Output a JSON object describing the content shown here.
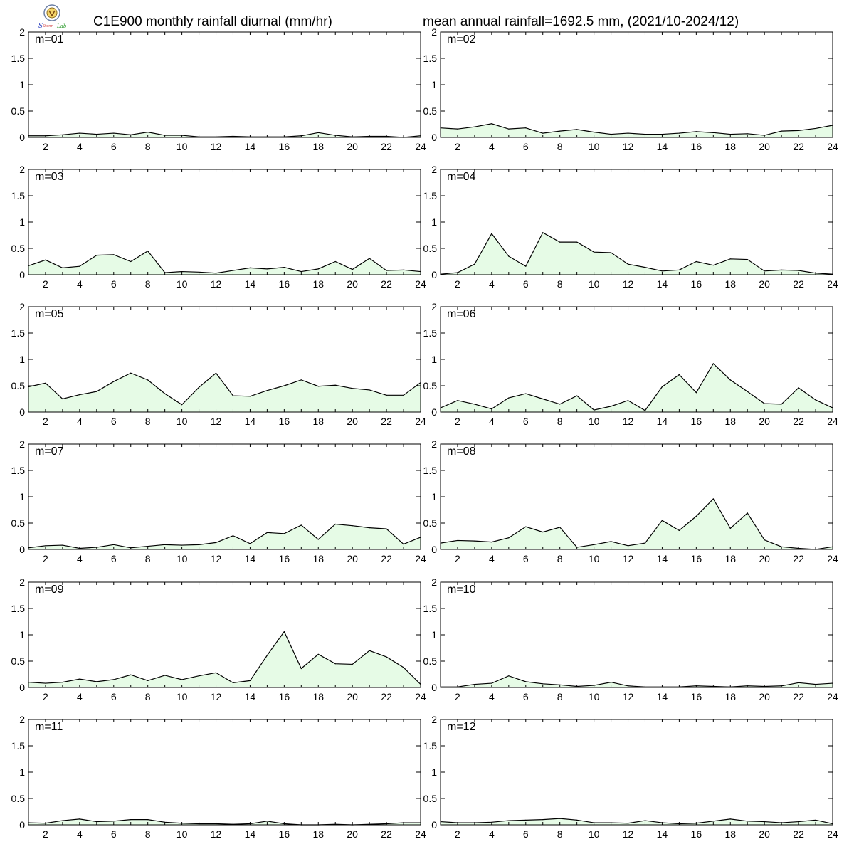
{
  "header": {
    "title_left": "C1E900 monthly rainfall diurnal (mm/hr)",
    "title_right": "mean annual rainfall=1692.5 mm, (2021/10-2024/12)"
  },
  "colors": {
    "fill": "#e6fbe6",
    "line": "#000000",
    "frame": "#000000"
  },
  "chart_data": [
    {
      "type": "area",
      "label": "m=01",
      "xlim": [
        1,
        24
      ],
      "ylim": [
        0,
        2
      ],
      "yticks": [
        0,
        0.5,
        1,
        1.5,
        2
      ],
      "xticks": [
        2,
        4,
        6,
        8,
        10,
        12,
        14,
        16,
        18,
        20,
        22,
        24
      ],
      "x": [
        1,
        2,
        3,
        4,
        5,
        6,
        7,
        8,
        9,
        10,
        11,
        12,
        13,
        14,
        15,
        16,
        17,
        18,
        19,
        20,
        21,
        22,
        23,
        24
      ],
      "values": [
        0.03,
        0.03,
        0.05,
        0.08,
        0.06,
        0.08,
        0.05,
        0.1,
        0.04,
        0.04,
        0.01,
        0.01,
        0.02,
        0.01,
        0.01,
        0.01,
        0.03,
        0.09,
        0.04,
        0.01,
        0.02,
        0.02,
        0.0,
        0.03
      ]
    },
    {
      "type": "area",
      "label": "m=02",
      "xlim": [
        1,
        24
      ],
      "ylim": [
        0,
        2
      ],
      "yticks": [
        0,
        0.5,
        1,
        1.5,
        2
      ],
      "xticks": [
        2,
        4,
        6,
        8,
        10,
        12,
        14,
        16,
        18,
        20,
        22,
        24
      ],
      "x": [
        1,
        2,
        3,
        4,
        5,
        6,
        7,
        8,
        9,
        10,
        11,
        12,
        13,
        14,
        15,
        16,
        17,
        18,
        19,
        20,
        21,
        22,
        23,
        24
      ],
      "values": [
        0.18,
        0.16,
        0.2,
        0.26,
        0.16,
        0.18,
        0.08,
        0.12,
        0.15,
        0.1,
        0.06,
        0.08,
        0.06,
        0.06,
        0.08,
        0.11,
        0.09,
        0.06,
        0.07,
        0.04,
        0.12,
        0.13,
        0.17,
        0.23
      ]
    },
    {
      "type": "area",
      "label": "m=03",
      "xlim": [
        1,
        24
      ],
      "ylim": [
        0,
        2
      ],
      "yticks": [
        0,
        0.5,
        1,
        1.5,
        2
      ],
      "xticks": [
        2,
        4,
        6,
        8,
        10,
        12,
        14,
        16,
        18,
        20,
        22,
        24
      ],
      "x": [
        1,
        2,
        3,
        4,
        5,
        6,
        7,
        8,
        9,
        10,
        11,
        12,
        13,
        14,
        15,
        16,
        17,
        18,
        19,
        20,
        21,
        22,
        23,
        24
      ],
      "values": [
        0.17,
        0.28,
        0.13,
        0.16,
        0.37,
        0.38,
        0.25,
        0.45,
        0.04,
        0.06,
        0.05,
        0.03,
        0.08,
        0.13,
        0.11,
        0.14,
        0.06,
        0.11,
        0.25,
        0.1,
        0.31,
        0.08,
        0.09,
        0.06
      ]
    },
    {
      "type": "area",
      "label": "m=04",
      "xlim": [
        1,
        24
      ],
      "ylim": [
        0,
        2
      ],
      "yticks": [
        0,
        0.5,
        1,
        1.5,
        2
      ],
      "xticks": [
        2,
        4,
        6,
        8,
        10,
        12,
        14,
        16,
        18,
        20,
        22,
        24
      ],
      "x": [
        1,
        2,
        3,
        4,
        5,
        6,
        7,
        8,
        9,
        10,
        11,
        12,
        13,
        14,
        15,
        16,
        17,
        18,
        19,
        20,
        21,
        22,
        23,
        24
      ],
      "values": [
        0.01,
        0.04,
        0.2,
        0.78,
        0.35,
        0.16,
        0.8,
        0.62,
        0.62,
        0.43,
        0.42,
        0.2,
        0.14,
        0.07,
        0.09,
        0.25,
        0.18,
        0.3,
        0.29,
        0.07,
        0.09,
        0.08,
        0.03,
        0.01
      ]
    },
    {
      "type": "area",
      "label": "m=05",
      "xlim": [
        1,
        24
      ],
      "ylim": [
        0,
        2
      ],
      "yticks": [
        0,
        0.5,
        1,
        1.5,
        2
      ],
      "xticks": [
        2,
        4,
        6,
        8,
        10,
        12,
        14,
        16,
        18,
        20,
        22,
        24
      ],
      "x": [
        1,
        2,
        3,
        4,
        5,
        6,
        7,
        8,
        9,
        10,
        11,
        12,
        13,
        14,
        15,
        16,
        17,
        18,
        19,
        20,
        21,
        22,
        23,
        24
      ],
      "values": [
        0.48,
        0.55,
        0.25,
        0.33,
        0.39,
        0.58,
        0.74,
        0.61,
        0.35,
        0.14,
        0.47,
        0.74,
        0.31,
        0.3,
        0.41,
        0.5,
        0.61,
        0.49,
        0.51,
        0.45,
        0.42,
        0.32,
        0.32,
        0.56
      ]
    },
    {
      "type": "area",
      "label": "m=06",
      "xlim": [
        1,
        24
      ],
      "ylim": [
        0,
        2
      ],
      "yticks": [
        0,
        0.5,
        1,
        1.5,
        2
      ],
      "xticks": [
        2,
        4,
        6,
        8,
        10,
        12,
        14,
        16,
        18,
        20,
        22,
        24
      ],
      "x": [
        1,
        2,
        3,
        4,
        5,
        6,
        7,
        8,
        9,
        10,
        11,
        12,
        13,
        14,
        15,
        16,
        17,
        18,
        19,
        20,
        21,
        22,
        23,
        24
      ],
      "values": [
        0.08,
        0.22,
        0.15,
        0.06,
        0.27,
        0.35,
        0.25,
        0.15,
        0.31,
        0.04,
        0.11,
        0.22,
        0.03,
        0.48,
        0.71,
        0.37,
        0.92,
        0.61,
        0.39,
        0.16,
        0.15,
        0.46,
        0.23,
        0.08
      ]
    },
    {
      "type": "area",
      "label": "m=07",
      "xlim": [
        1,
        24
      ],
      "ylim": [
        0,
        2
      ],
      "yticks": [
        0,
        0.5,
        1,
        1.5,
        2
      ],
      "xticks": [
        2,
        4,
        6,
        8,
        10,
        12,
        14,
        16,
        18,
        20,
        22,
        24
      ],
      "x": [
        1,
        2,
        3,
        4,
        5,
        6,
        7,
        8,
        9,
        10,
        11,
        12,
        13,
        14,
        15,
        16,
        17,
        18,
        19,
        20,
        21,
        22,
        23,
        24
      ],
      "values": [
        0.03,
        0.07,
        0.08,
        0.02,
        0.04,
        0.09,
        0.03,
        0.06,
        0.09,
        0.08,
        0.09,
        0.13,
        0.26,
        0.11,
        0.32,
        0.3,
        0.46,
        0.19,
        0.48,
        0.45,
        0.41,
        0.39,
        0.1,
        0.23
      ]
    },
    {
      "type": "area",
      "label": "m=08",
      "xlim": [
        1,
        24
      ],
      "ylim": [
        0,
        2
      ],
      "yticks": [
        0,
        0.5,
        1,
        1.5,
        2
      ],
      "xticks": [
        2,
        4,
        6,
        8,
        10,
        12,
        14,
        16,
        18,
        20,
        22,
        24
      ],
      "x": [
        1,
        2,
        3,
        4,
        5,
        6,
        7,
        8,
        9,
        10,
        11,
        12,
        13,
        14,
        15,
        16,
        17,
        18,
        19,
        20,
        21,
        22,
        23,
        24
      ],
      "values": [
        0.12,
        0.17,
        0.16,
        0.14,
        0.22,
        0.43,
        0.33,
        0.42,
        0.04,
        0.09,
        0.15,
        0.07,
        0.12,
        0.55,
        0.36,
        0.63,
        0.96,
        0.4,
        0.69,
        0.18,
        0.05,
        0.02,
        0.0,
        0.05
      ]
    },
    {
      "type": "area",
      "label": "m=09",
      "xlim": [
        1,
        24
      ],
      "ylim": [
        0,
        2
      ],
      "yticks": [
        0,
        0.5,
        1,
        1.5,
        2
      ],
      "xticks": [
        2,
        4,
        6,
        8,
        10,
        12,
        14,
        16,
        18,
        20,
        22,
        24
      ],
      "x": [
        1,
        2,
        3,
        4,
        5,
        6,
        7,
        8,
        9,
        10,
        11,
        12,
        13,
        14,
        15,
        16,
        17,
        18,
        19,
        20,
        21,
        22,
        23,
        24
      ],
      "values": [
        0.1,
        0.08,
        0.1,
        0.16,
        0.11,
        0.15,
        0.24,
        0.13,
        0.23,
        0.15,
        0.22,
        0.28,
        0.09,
        0.13,
        0.61,
        1.06,
        0.36,
        0.63,
        0.45,
        0.44,
        0.7,
        0.58,
        0.38,
        0.06
      ]
    },
    {
      "type": "area",
      "label": "m=10",
      "xlim": [
        1,
        24
      ],
      "ylim": [
        0,
        2
      ],
      "yticks": [
        0,
        0.5,
        1,
        1.5,
        2
      ],
      "xticks": [
        2,
        4,
        6,
        8,
        10,
        12,
        14,
        16,
        18,
        20,
        22,
        24
      ],
      "x": [
        1,
        2,
        3,
        4,
        5,
        6,
        7,
        8,
        9,
        10,
        11,
        12,
        13,
        14,
        15,
        16,
        17,
        18,
        19,
        20,
        21,
        22,
        23,
        24
      ],
      "values": [
        0.01,
        0.01,
        0.06,
        0.08,
        0.22,
        0.11,
        0.07,
        0.05,
        0.02,
        0.04,
        0.1,
        0.03,
        0.01,
        0.01,
        0.01,
        0.03,
        0.02,
        0.01,
        0.03,
        0.02,
        0.03,
        0.09,
        0.06,
        0.08
      ]
    },
    {
      "type": "area",
      "label": "m=11",
      "xlim": [
        1,
        24
      ],
      "ylim": [
        0,
        2
      ],
      "yticks": [
        0,
        0.5,
        1,
        1.5,
        2
      ],
      "xticks": [
        2,
        4,
        6,
        8,
        10,
        12,
        14,
        16,
        18,
        20,
        22,
        24
      ],
      "x": [
        1,
        2,
        3,
        4,
        5,
        6,
        7,
        8,
        9,
        10,
        11,
        12,
        13,
        14,
        15,
        16,
        17,
        18,
        19,
        20,
        21,
        22,
        23,
        24
      ],
      "values": [
        0.04,
        0.03,
        0.08,
        0.11,
        0.06,
        0.07,
        0.1,
        0.1,
        0.05,
        0.03,
        0.02,
        0.02,
        0.01,
        0.02,
        0.07,
        0.02,
        0.0,
        0.0,
        0.01,
        0.0,
        0.01,
        0.02,
        0.04,
        0.04
      ]
    },
    {
      "type": "area",
      "label": "m=12",
      "xlim": [
        1,
        24
      ],
      "ylim": [
        0,
        2
      ],
      "yticks": [
        0,
        0.5,
        1,
        1.5,
        2
      ],
      "xticks": [
        2,
        4,
        6,
        8,
        10,
        12,
        14,
        16,
        18,
        20,
        22,
        24
      ],
      "x": [
        1,
        2,
        3,
        4,
        5,
        6,
        7,
        8,
        9,
        10,
        11,
        12,
        13,
        14,
        15,
        16,
        17,
        18,
        19,
        20,
        21,
        22,
        23,
        24
      ],
      "values": [
        0.06,
        0.04,
        0.04,
        0.05,
        0.08,
        0.09,
        0.1,
        0.12,
        0.09,
        0.04,
        0.04,
        0.03,
        0.08,
        0.04,
        0.02,
        0.03,
        0.07,
        0.11,
        0.07,
        0.06,
        0.04,
        0.06,
        0.09,
        0.02
      ]
    }
  ]
}
